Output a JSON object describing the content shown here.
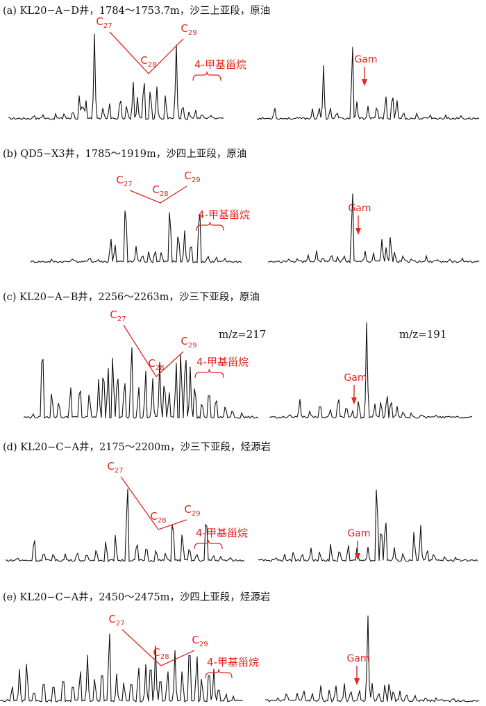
{
  "colors": {
    "trace": "#111111",
    "annotation": "#e0261f"
  },
  "labels": {
    "c27": "C27",
    "c28": "C28",
    "c29": "C29",
    "methyl_sterane": "4-甲基甾烷",
    "gam": "Gam"
  },
  "mz_labels": {
    "left": "m/z=217",
    "right": "m/z=191"
  },
  "chart_data": [
    {
      "type": "line",
      "panel": "a",
      "title": "(a) KL20−A−D井，1784～1753.7m，沙三上亚段，原油",
      "series": [
        {
          "ion": "m/z=217",
          "peaks": [
            [
              0.12,
              0.06
            ],
            [
              0.16,
              0.06
            ],
            [
              0.22,
              0.07
            ],
            [
              0.26,
              0.08
            ],
            [
              0.3,
              0.12
            ],
            [
              0.33,
              0.3
            ],
            [
              0.345,
              0.22
            ],
            [
              0.36,
              0.25
            ],
            [
              0.4,
              0.95
            ],
            [
              0.44,
              0.15
            ],
            [
              0.47,
              0.2
            ],
            [
              0.52,
              0.3
            ],
            [
              0.55,
              0.18
            ],
            [
              0.58,
              0.45
            ],
            [
              0.6,
              0.25
            ],
            [
              0.63,
              0.55
            ],
            [
              0.66,
              0.4
            ],
            [
              0.69,
              0.38
            ],
            [
              0.73,
              0.3
            ],
            [
              0.78,
              0.9
            ],
            [
              0.81,
              0.2
            ],
            [
              0.84,
              0.1
            ],
            [
              0.87,
              0.12
            ],
            [
              0.9,
              0.08
            ],
            [
              0.94,
              0.06
            ]
          ]
        },
        {
          "ion": "m/z=191",
          "peaks": [
            [
              0.08,
              0.15
            ],
            [
              0.25,
              0.12
            ],
            [
              0.28,
              0.15
            ],
            [
              0.3,
              0.6
            ],
            [
              0.33,
              0.15
            ],
            [
              0.36,
              0.1
            ],
            [
              0.43,
              0.95
            ],
            [
              0.45,
              0.2
            ],
            [
              0.5,
              0.15
            ],
            [
              0.54,
              0.18
            ],
            [
              0.58,
              0.3
            ],
            [
              0.61,
              0.35
            ],
            [
              0.63,
              0.25
            ],
            [
              0.66,
              0.1
            ],
            [
              0.72,
              0.08
            ],
            [
              0.78,
              0.06
            ],
            [
              0.85,
              0.05
            ],
            [
              0.92,
              0.05
            ]
          ]
        }
      ]
    },
    {
      "type": "line",
      "panel": "b",
      "title": "(b) QD5−X3井，1785～1919m，沙四上亚段，原油",
      "series": [
        {
          "ion": "m/z=217",
          "peaks": [
            [
              0.1,
              0.05
            ],
            [
              0.2,
              0.06
            ],
            [
              0.28,
              0.08
            ],
            [
              0.32,
              0.05
            ],
            [
              0.38,
              0.35
            ],
            [
              0.4,
              0.25
            ],
            [
              0.45,
              0.9
            ],
            [
              0.5,
              0.2
            ],
            [
              0.53,
              0.12
            ],
            [
              0.56,
              0.15
            ],
            [
              0.59,
              0.18
            ],
            [
              0.62,
              0.15
            ],
            [
              0.66,
              0.8
            ],
            [
              0.7,
              0.45
            ],
            [
              0.73,
              0.4
            ],
            [
              0.76,
              0.3
            ],
            [
              0.8,
              0.85
            ],
            [
              0.84,
              0.1
            ],
            [
              0.88,
              0.08
            ],
            [
              0.92,
              0.06
            ]
          ]
        },
        {
          "ion": "m/z=191",
          "peaks": [
            [
              0.1,
              0.05
            ],
            [
              0.14,
              0.06
            ],
            [
              0.19,
              0.1
            ],
            [
              0.23,
              0.15
            ],
            [
              0.26,
              0.08
            ],
            [
              0.3,
              0.12
            ],
            [
              0.33,
              0.08
            ],
            [
              0.36,
              0.1
            ],
            [
              0.4,
              0.98
            ],
            [
              0.46,
              0.15
            ],
            [
              0.5,
              0.12
            ],
            [
              0.54,
              0.3
            ],
            [
              0.56,
              0.2
            ],
            [
              0.58,
              0.35
            ],
            [
              0.6,
              0.15
            ],
            [
              0.64,
              0.1
            ],
            [
              0.68,
              0.06
            ],
            [
              0.75,
              0.08
            ],
            [
              0.8,
              0.05
            ],
            [
              0.86,
              0.05
            ],
            [
              0.92,
              0.06
            ]
          ]
        }
      ]
    },
    {
      "type": "line",
      "panel": "c",
      "title": "(c) KL20−A−B井，2256～2263m，沙三下亚段，原油",
      "series": [
        {
          "ion": "m/z=217",
          "peaks": [
            [
              0.04,
              0.05
            ],
            [
              0.08,
              0.9
            ],
            [
              0.12,
              0.3
            ],
            [
              0.15,
              0.2
            ],
            [
              0.2,
              0.35
            ],
            [
              0.24,
              0.4
            ],
            [
              0.28,
              0.3
            ],
            [
              0.32,
              0.4
            ],
            [
              0.34,
              0.6
            ],
            [
              0.36,
              0.55
            ],
            [
              0.38,
              0.7
            ],
            [
              0.4,
              0.55
            ],
            [
              0.43,
              0.45
            ],
            [
              0.46,
              0.85
            ],
            [
              0.49,
              0.35
            ],
            [
              0.52,
              0.5
            ],
            [
              0.55,
              0.4
            ],
            [
              0.58,
              0.55
            ],
            [
              0.6,
              0.45
            ],
            [
              0.62,
              0.3
            ],
            [
              0.65,
              0.6
            ],
            [
              0.67,
              0.75
            ],
            [
              0.69,
              0.8
            ],
            [
              0.71,
              0.5
            ],
            [
              0.73,
              0.4
            ],
            [
              0.76,
              0.2
            ],
            [
              0.79,
              0.35
            ],
            [
              0.82,
              0.25
            ],
            [
              0.86,
              0.15
            ],
            [
              0.89,
              0.1
            ],
            [
              0.93,
              0.06
            ]
          ]
        },
        {
          "ion": "m/z=191",
          "peaks": [
            [
              0.1,
              0.05
            ],
            [
              0.15,
              0.2
            ],
            [
              0.2,
              0.08
            ],
            [
              0.25,
              0.18
            ],
            [
              0.3,
              0.1
            ],
            [
              0.34,
              0.25
            ],
            [
              0.38,
              0.15
            ],
            [
              0.41,
              0.08
            ],
            [
              0.44,
              0.2
            ],
            [
              0.48,
              0.98
            ],
            [
              0.52,
              0.15
            ],
            [
              0.55,
              0.2
            ],
            [
              0.58,
              0.28
            ],
            [
              0.6,
              0.22
            ],
            [
              0.63,
              0.12
            ],
            [
              0.66,
              0.08
            ],
            [
              0.7,
              0.06
            ],
            [
              0.75,
              0.05
            ],
            [
              0.82,
              0.04
            ]
          ]
        }
      ]
    },
    {
      "type": "line",
      "panel": "d",
      "title": "(d) KL20−C−A井，2175～2200m，沙三下亚段，烃源岩",
      "series": [
        {
          "ion": "m/z=217",
          "peaks": [
            [
              0.05,
              0.05
            ],
            [
              0.12,
              0.3
            ],
            [
              0.16,
              0.12
            ],
            [
              0.2,
              0.1
            ],
            [
              0.25,
              0.08
            ],
            [
              0.3,
              0.12
            ],
            [
              0.34,
              0.1
            ],
            [
              0.38,
              0.15
            ],
            [
              0.42,
              0.25
            ],
            [
              0.46,
              0.3
            ],
            [
              0.51,
              0.95
            ],
            [
              0.55,
              0.25
            ],
            [
              0.59,
              0.2
            ],
            [
              0.63,
              0.15
            ],
            [
              0.67,
              0.1
            ],
            [
              0.7,
              0.55
            ],
            [
              0.74,
              0.35
            ],
            [
              0.77,
              0.18
            ],
            [
              0.8,
              0.1
            ],
            [
              0.84,
              0.6
            ],
            [
              0.87,
              0.08
            ],
            [
              0.9,
              0.06
            ],
            [
              0.94,
              0.05
            ]
          ]
        },
        {
          "ion": "m/z=191",
          "peaks": [
            [
              0.08,
              0.05
            ],
            [
              0.12,
              0.08
            ],
            [
              0.16,
              0.12
            ],
            [
              0.2,
              0.1
            ],
            [
              0.24,
              0.15
            ],
            [
              0.28,
              0.12
            ],
            [
              0.33,
              0.2
            ],
            [
              0.37,
              0.15
            ],
            [
              0.41,
              0.2
            ],
            [
              0.45,
              0.15
            ],
            [
              0.5,
              0.15
            ],
            [
              0.54,
              0.98
            ],
            [
              0.56,
              0.45
            ],
            [
              0.58,
              0.55
            ],
            [
              0.62,
              0.15
            ],
            [
              0.66,
              0.1
            ],
            [
              0.71,
              0.35
            ],
            [
              0.74,
              0.4
            ],
            [
              0.77,
              0.15
            ],
            [
              0.8,
              0.1
            ],
            [
              0.85,
              0.06
            ],
            [
              0.9,
              0.05
            ]
          ]
        }
      ]
    },
    {
      "type": "line",
      "panel": "e",
      "title": "(e) KL20−C−A井，2450～2475m，沙四上亚段，烃源岩",
      "series": [
        {
          "ion": "m/z=217",
          "peaks": [
            [
              0.05,
              0.2
            ],
            [
              0.08,
              0.35
            ],
            [
              0.11,
              0.5
            ],
            [
              0.14,
              0.15
            ],
            [
              0.18,
              0.3
            ],
            [
              0.22,
              0.25
            ],
            [
              0.26,
              0.35
            ],
            [
              0.3,
              0.25
            ],
            [
              0.33,
              0.4
            ],
            [
              0.36,
              0.5
            ],
            [
              0.39,
              0.3
            ],
            [
              0.42,
              0.45
            ],
            [
              0.45,
              0.9
            ],
            [
              0.48,
              0.3
            ],
            [
              0.51,
              0.25
            ],
            [
              0.54,
              0.3
            ],
            [
              0.57,
              0.45
            ],
            [
              0.6,
              0.4
            ],
            [
              0.62,
              0.55
            ],
            [
              0.64,
              0.6
            ],
            [
              0.66,
              0.35
            ],
            [
              0.69,
              0.4
            ],
            [
              0.72,
              0.55
            ],
            [
              0.75,
              0.4
            ],
            [
              0.78,
              0.8
            ],
            [
              0.81,
              0.6
            ],
            [
              0.83,
              0.3
            ],
            [
              0.86,
              0.45
            ],
            [
              0.88,
              0.35
            ],
            [
              0.9,
              0.2
            ],
            [
              0.93,
              0.1
            ],
            [
              0.96,
              0.06
            ]
          ]
        },
        {
          "ion": "m/z=191",
          "peaks": [
            [
              0.06,
              0.05
            ],
            [
              0.1,
              0.12
            ],
            [
              0.15,
              0.1
            ],
            [
              0.18,
              0.15
            ],
            [
              0.22,
              0.1
            ],
            [
              0.26,
              0.18
            ],
            [
              0.3,
              0.15
            ],
            [
              0.33,
              0.2
            ],
            [
              0.37,
              0.2
            ],
            [
              0.4,
              0.15
            ],
            [
              0.44,
              0.15
            ],
            [
              0.48,
              0.98
            ],
            [
              0.5,
              0.2
            ],
            [
              0.53,
              0.12
            ],
            [
              0.56,
              0.22
            ],
            [
              0.58,
              0.25
            ],
            [
              0.6,
              0.15
            ],
            [
              0.63,
              0.12
            ],
            [
              0.66,
              0.1
            ],
            [
              0.7,
              0.08
            ],
            [
              0.75,
              0.06
            ],
            [
              0.8,
              0.05
            ],
            [
              0.88,
              0.05
            ]
          ]
        }
      ]
    }
  ]
}
